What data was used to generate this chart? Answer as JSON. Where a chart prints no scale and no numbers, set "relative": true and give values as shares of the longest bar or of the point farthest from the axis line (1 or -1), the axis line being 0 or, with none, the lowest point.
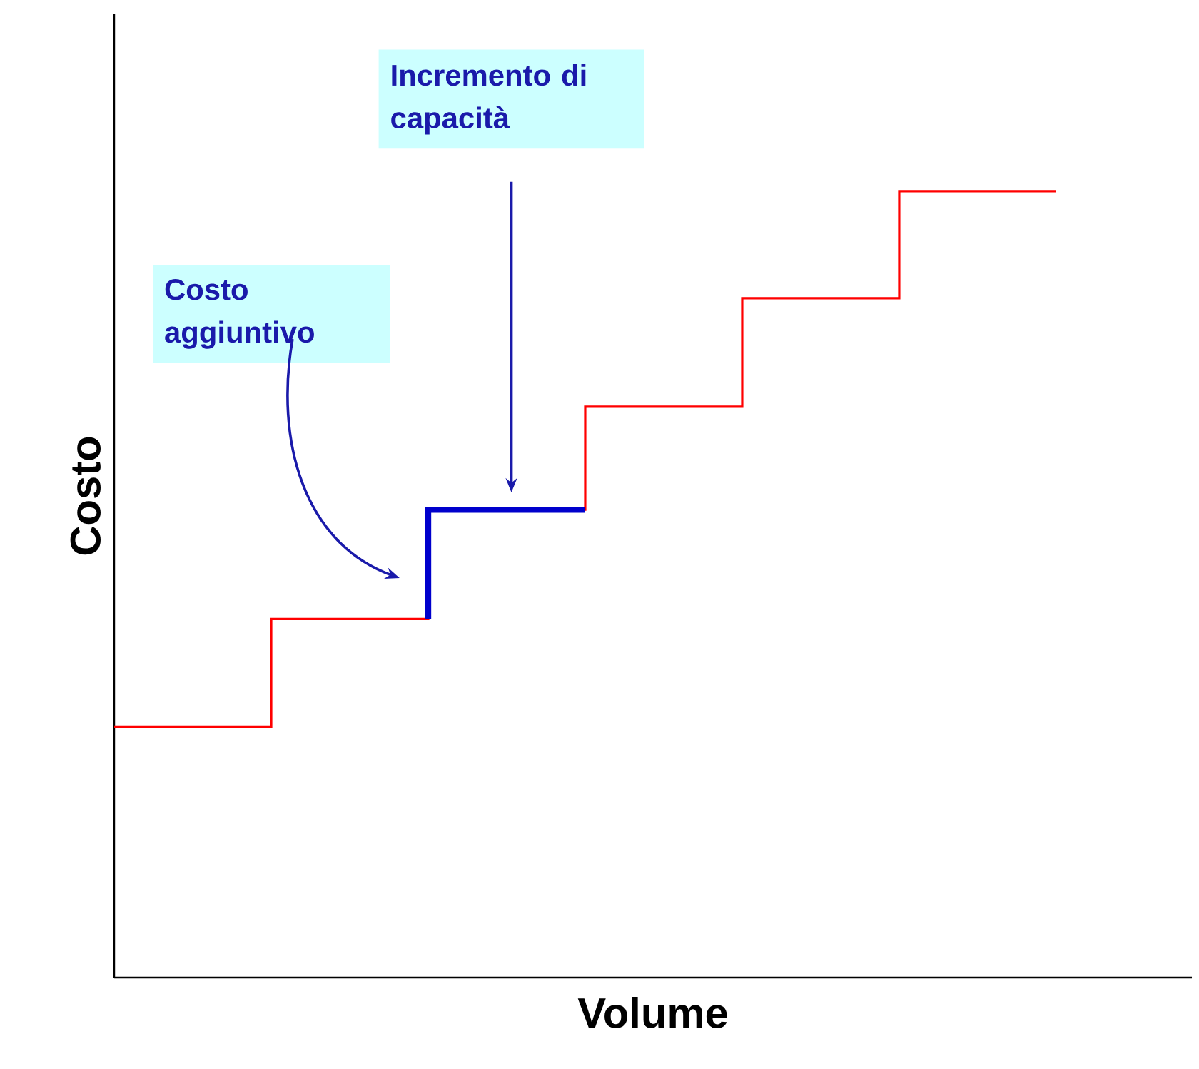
{
  "chart_data": {
    "type": "step",
    "relative": true,
    "xlabel": "Volume",
    "ylabel": "Costo",
    "categories": [
      null,
      null,
      null,
      null,
      null,
      null,
      null
    ],
    "series": [
      {
        "color": "#ff0000",
        "values": [
          0.319,
          0.319,
          0.456,
          0.595,
          0.726,
          0.864,
          1
        ]
      },
      {
        "color": "#0000cc",
        "values": [
          null,
          null,
          0.456,
          0.595,
          null,
          null,
          null
        ]
      }
    ],
    "annotations": [
      "Costo aggiuntivo",
      "Incremento di capacità"
    ],
    "marker": "none",
    "line_style": "solid"
  }
}
